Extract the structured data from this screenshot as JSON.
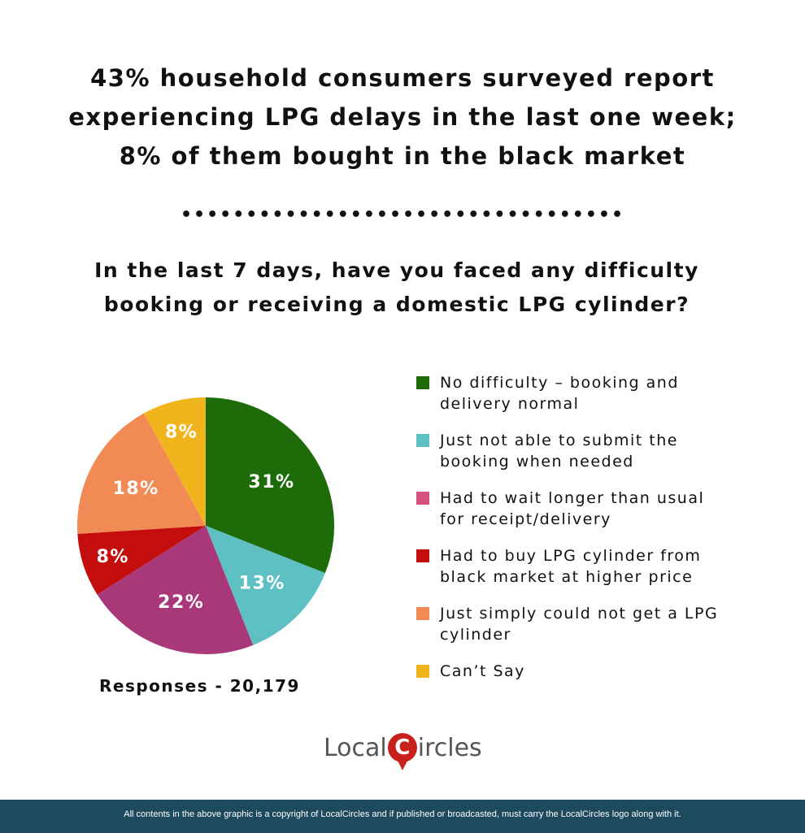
{
  "title_lines": [
    "43% household consumers surveyed report",
    "experiencing LPG delays in the last one week;",
    "8% of them bought in the black market"
  ],
  "divider": "••••••••••••••••••••••••••••••••••",
  "question_lines": [
    "In the last 7 days, have you faced any difficulty",
    "booking or receiving a domestic LPG cylinder?"
  ],
  "chart_data": {
    "type": "pie",
    "start": "top, clockwise",
    "categories": [
      "No difficulty – booking and delivery normal",
      "Just not able to submit the booking when needed",
      "Had to wait longer than usual for receipt/delivery",
      "Had to buy LPG cylinder from black market at higher price",
      "Just simply could not get a LPG cylinder",
      "Can’t Say"
    ],
    "legend_lines": [
      [
        "No difficulty – booking and",
        "delivery normal"
      ],
      [
        "Just not able to submit the",
        "booking when needed"
      ],
      [
        "Had to wait longer than usual",
        "for receipt/delivery"
      ],
      [
        "Had to buy LPG cylinder from",
        "black market at higher price"
      ],
      [
        "Just simply could not get a LPG",
        "cylinder"
      ],
      [
        "Can’t Say"
      ]
    ],
    "values": [
      31,
      13,
      22,
      8,
      18,
      8
    ],
    "labels": [
      "31%",
      "13%",
      "22%",
      "8%",
      "18%",
      "8%"
    ],
    "colors": [
      "#1e6b0a",
      "#5fc0c4",
      "#a8387a",
      "#c40d0d",
      "#f28a55",
      "#f0b41c"
    ],
    "legend_colors": [
      "#1e6b0a",
      "#5fc0c4",
      "#d3517c",
      "#c40d0d",
      "#f28a55",
      "#f0b41c"
    ],
    "legend_placement": "right"
  },
  "responses": "Responses - 20,179",
  "logo": "LocalCircles",
  "footer": "All contents in the above graphic is a copyright of LocalCircles and if published or broadcasted, must carry the LocalCircles logo along with it."
}
